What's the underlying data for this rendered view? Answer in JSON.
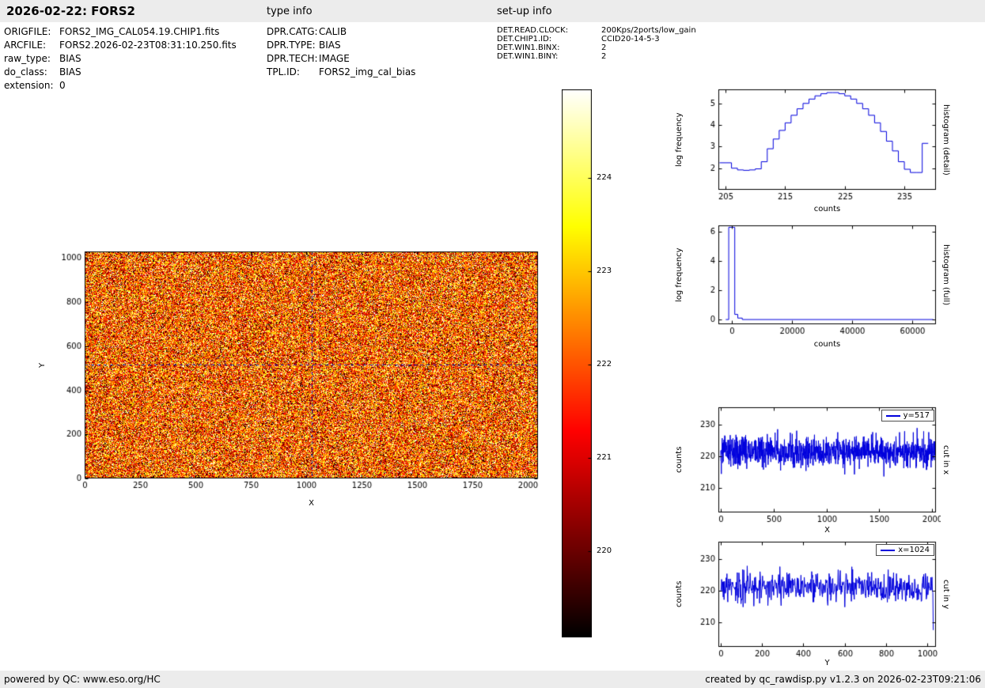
{
  "header": {
    "title": "2026-02-22: FORS2",
    "type_info_label": "type info",
    "setup_info_label": "set-up info"
  },
  "file_info": [
    {
      "label": "ORIGFILE:",
      "value": "FORS2_IMG_CAL054.19.CHIP1.fits"
    },
    {
      "label": "ARCFILE:",
      "value": "FORS2.2026-02-23T08:31:10.250.fits"
    },
    {
      "label": "raw_type:",
      "value": "BIAS"
    },
    {
      "label": "do_class:",
      "value": "BIAS"
    },
    {
      "label": "extension:",
      "value": "0"
    }
  ],
  "type_info": [
    {
      "label": "DPR.CATG:",
      "value": "CALIB"
    },
    {
      "label": "DPR.TYPE:",
      "value": "BIAS"
    },
    {
      "label": "DPR.TECH:",
      "value": "IMAGE"
    },
    {
      "label": "TPL.ID:",
      "value": "FORS2_img_cal_bias"
    }
  ],
  "setup_info": [
    {
      "label": "DET.READ.CLOCK:",
      "value": "200Kps/2ports/low_gain"
    },
    {
      "label": "DET.CHIP1.ID:",
      "value": "CCID20-14-5-3"
    },
    {
      "label": "DET.WIN1.BINX:",
      "value": "2"
    },
    {
      "label": "DET.WIN1.BINY:",
      "value": "2"
    }
  ],
  "footer": {
    "left": "powered by QC: www.eso.org/HC",
    "right": "created by qc_rawdisp.py v1.2.3 on 2026-02-23T09:21:06"
  },
  "chart_data": [
    {
      "id": "bias_image",
      "type": "heatmap",
      "xlabel": "X",
      "ylabel": "Y",
      "xlim": [
        0,
        2048
      ],
      "ylim": [
        0,
        1030
      ],
      "xticks": [
        0,
        250,
        500,
        750,
        1000,
        1250,
        1500,
        1750,
        2000
      ],
      "yticks": [
        0,
        200,
        400,
        600,
        800,
        1000
      ],
      "colormap": "hot",
      "vmin": 219.08,
      "vmax": 224.95,
      "noise": {
        "mean": 222.1,
        "std": 1.6,
        "seed": 20260222
      },
      "crosshair": {
        "x": 1024,
        "y": 517,
        "color": "#2a2ab0",
        "dash": [
          4,
          4
        ]
      },
      "colorbar": {
        "ticks": [
          220,
          221,
          222,
          223,
          224
        ]
      }
    },
    {
      "id": "hist_detail",
      "type": "line",
      "step": true,
      "xlabel": "counts",
      "ylabel": "log frequency",
      "side_label": "histogram (detail)",
      "xlim": [
        203.8,
        240.3
      ],
      "ylim": [
        1.0,
        5.65
      ],
      "xticks": [
        205,
        215,
        225,
        235
      ],
      "yticks": [
        2,
        3,
        4,
        5
      ],
      "color": "#0000dd",
      "x": [
        204,
        205,
        206,
        207,
        208,
        209,
        210,
        211,
        212,
        213,
        214,
        215,
        216,
        217,
        218,
        219,
        220,
        221,
        222,
        223,
        224,
        225,
        226,
        227,
        228,
        229,
        230,
        231,
        232,
        233,
        234,
        235,
        236,
        237,
        238,
        239
      ],
      "y": [
        2.25,
        2.25,
        2.0,
        1.92,
        1.9,
        1.92,
        1.97,
        2.3,
        2.9,
        3.35,
        3.75,
        4.1,
        4.45,
        4.75,
        5.0,
        5.2,
        5.35,
        5.45,
        5.5,
        5.5,
        5.45,
        5.35,
        5.2,
        5.0,
        4.75,
        4.45,
        4.1,
        3.7,
        3.25,
        2.8,
        2.3,
        1.95,
        1.8,
        1.8,
        3.15,
        3.15
      ]
    },
    {
      "id": "hist_full",
      "type": "line",
      "step": true,
      "xlabel": "counts",
      "ylabel": "log frequency",
      "side_label": "histogram (full)",
      "xlim": [
        -4440,
        67840
      ],
      "ylim": [
        -0.32,
        6.43
      ],
      "xticks": [
        0,
        20000,
        40000,
        60000
      ],
      "yticks": [
        0,
        2,
        4,
        6
      ],
      "color": "#0000dd",
      "x": [
        -2000,
        -1000,
        1000,
        2000,
        3500,
        67000
      ],
      "y": [
        0,
        6.3,
        0.35,
        0.1,
        0,
        0
      ]
    },
    {
      "id": "cut_x",
      "type": "line",
      "legend": "y=517",
      "xlabel": "X",
      "ylabel": "counts",
      "side_label": "cut in x",
      "xlim": [
        -22,
        2035
      ],
      "ylim": [
        202.2,
        235.4
      ],
      "xticks": [
        0,
        500,
        1000,
        1500,
        2000
      ],
      "yticks": [
        210,
        220,
        230
      ],
      "color": "#0000dd",
      "noise": {
        "mean": 221.3,
        "std": 2.5,
        "n": 1024,
        "x_start": 0,
        "x_end": 2047,
        "seed": 424242
      }
    },
    {
      "id": "cut_y",
      "type": "line",
      "legend": "x=1024",
      "xlabel": "Y",
      "ylabel": "counts",
      "side_label": "cut in y",
      "xlim": [
        -11.5,
        1042
      ],
      "ylim": [
        202.2,
        235.4
      ],
      "xticks": [
        0,
        200,
        400,
        600,
        800,
        1000
      ],
      "yticks": [
        210,
        220,
        230
      ],
      "color": "#0000dd",
      "noise": {
        "mean": 221.3,
        "std": 2.5,
        "n": 515,
        "x_start": 0,
        "x_end": 1029,
        "seed": 171717,
        "last_value": 207.5
      }
    }
  ]
}
